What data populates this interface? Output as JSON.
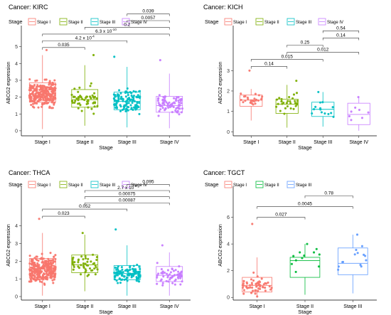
{
  "chart_data": [
    {
      "type": "box",
      "title": "Cancer: KIRC",
      "xlabel": "Stage",
      "ylabel": "ABCG2 expression",
      "legend_title": "Stage",
      "legend_position": "top",
      "categories": [
        "Stage I",
        "Stage II",
        "Stage III",
        "Stage IV"
      ],
      "ylim": [
        -0.3,
        6.0
      ],
      "yticks": [
        0,
        1,
        2,
        3,
        4,
        5
      ],
      "colors": [
        "#F8766D",
        "#7CAE00",
        "#00BFC4",
        "#C77CFF"
      ],
      "boxes": [
        {
          "category": "Stage I",
          "q1": 1.7,
          "median": 2.2,
          "q3": 2.85,
          "whisker_low": 0.1,
          "whisker_high": 4.5,
          "n_points": 260,
          "max": 4.8
        },
        {
          "category": "Stage II",
          "q1": 1.4,
          "median": 1.85,
          "q3": 2.45,
          "whisker_low": 0.3,
          "whisker_high": 3.9,
          "n_points": 55,
          "max": 4.5
        },
        {
          "category": "Stage III",
          "q1": 1.25,
          "median": 1.75,
          "q3": 2.3,
          "whisker_low": 0.2,
          "whisker_high": 3.8,
          "n_points": 120,
          "max": 4.4
        },
        {
          "category": "Stage IV",
          "q1": 1.1,
          "median": 1.5,
          "q3": 2.05,
          "whisker_low": 0.15,
          "whisker_high": 3.4,
          "n_points": 80,
          "max": 4.2
        }
      ],
      "comparisons": [
        {
          "pair": [
            "Stage I",
            "Stage II"
          ],
          "label": "0.035",
          "y": 4.95
        },
        {
          "pair": [
            "Stage I",
            "Stage III"
          ],
          "label_base": "4.2",
          "label_mid": " x 10",
          "label_exp": "-4",
          "y": 5.35
        },
        {
          "pair": [
            "Stage I",
            "Stage IV"
          ],
          "label_base": "6.3",
          "label_mid": " x 10",
          "label_exp": "-10",
          "y": 5.75
        },
        {
          "pair": [
            "Stage II",
            "Stage IV"
          ],
          "label": "0.2",
          "y": 6.15
        },
        {
          "pair": [
            "Stage III",
            "Stage IV"
          ],
          "label": "0.0057",
          "y": 6.55
        },
        {
          "pair": [
            "Stage III",
            "Stage IV"
          ],
          "label": "0.039",
          "y": 6.95
        }
      ]
    },
    {
      "type": "box",
      "title": "Cancer: KICH",
      "xlabel": "Stage",
      "ylabel": "ABCG2 expression",
      "legend_title": "Stage",
      "legend_position": "top",
      "categories": [
        "Stage I",
        "Stage II",
        "Stage III",
        "Stage IV"
      ],
      "ylim": [
        -0.2,
        5.0
      ],
      "yticks": [
        0,
        1,
        2,
        3
      ],
      "colors": [
        "#F8766D",
        "#7CAE00",
        "#00BFC4",
        "#C77CFF"
      ],
      "boxes": [
        {
          "category": "Stage I",
          "q1": 1.25,
          "median": 1.55,
          "q3": 1.8,
          "whisker_low": 0.55,
          "whisker_high": 2.1,
          "n_points": 28,
          "max": 3.0
        },
        {
          "category": "Stage II",
          "q1": 0.9,
          "median": 1.35,
          "q3": 1.6,
          "whisker_low": 0.2,
          "whisker_high": 2.3,
          "n_points": 30,
          "max": 2.5
        },
        {
          "category": "Stage III",
          "q1": 0.75,
          "median": 1.1,
          "q3": 1.45,
          "whisker_low": 0.25,
          "whisker_high": 1.95,
          "n_points": 14,
          "max": 1.95
        },
        {
          "category": "Stage IV",
          "q1": 0.35,
          "median": 0.85,
          "q3": 1.4,
          "whisker_low": 0.05,
          "whisker_high": 1.7,
          "n_points": 8,
          "max": 1.7
        }
      ],
      "comparisons": [
        {
          "pair": [
            "Stage I",
            "Stage II"
          ],
          "label": "0.14",
          "y": 3.2
        },
        {
          "pair": [
            "Stage I",
            "Stage III"
          ],
          "label": "0.015",
          "y": 3.55
        },
        {
          "pair": [
            "Stage II",
            "Stage IV"
          ],
          "label": "0.012",
          "y": 3.9
        },
        {
          "pair": [
            "Stage II",
            "Stage III"
          ],
          "label": "0.25",
          "y": 4.25
        },
        {
          "pair": [
            "Stage III",
            "Stage IV"
          ],
          "label": "0.14",
          "y": 4.6
        },
        {
          "pair": [
            "Stage III",
            "Stage IV"
          ],
          "label": "0.54",
          "y": 4.95
        }
      ]
    },
    {
      "type": "box",
      "title": "Cancer: THCA",
      "xlabel": "Stage",
      "ylabel": "ABCG2 expression",
      "legend_title": "Stage",
      "legend_position": "top",
      "categories": [
        "Stage I",
        "Stage II",
        "Stage III",
        "Stage IV"
      ],
      "ylim": [
        -0.2,
        6.0
      ],
      "yticks": [
        0,
        1,
        2,
        3,
        4
      ],
      "colors": [
        "#F8766D",
        "#7CAE00",
        "#00BFC4",
        "#C77CFF"
      ],
      "boxes": [
        {
          "category": "Stage I",
          "q1": 1.05,
          "median": 1.55,
          "q3": 2.15,
          "whisker_low": 0.05,
          "whisker_high": 3.6,
          "n_points": 280,
          "max": 4.4
        },
        {
          "category": "Stage II",
          "q1": 1.35,
          "median": 1.8,
          "q3": 2.35,
          "whisker_low": 0.3,
          "whisker_high": 3.5,
          "n_points": 50,
          "max": 3.6
        },
        {
          "category": "Stage III",
          "q1": 0.95,
          "median": 1.3,
          "q3": 1.75,
          "whisker_low": 0.05,
          "whisker_high": 2.9,
          "n_points": 110,
          "max": 3.8
        },
        {
          "category": "Stage IV",
          "q1": 0.85,
          "median": 1.2,
          "q3": 1.7,
          "whisker_low": 0.05,
          "whisker_high": 2.5,
          "n_points": 60,
          "max": 2.9
        }
      ],
      "comparisons": [
        {
          "pair": [
            "Stage I",
            "Stage II"
          ],
          "label": "0.023",
          "y": 4.55
        },
        {
          "pair": [
            "Stage I",
            "Stage III"
          ],
          "label": "0.052",
          "y": 4.95
        },
        {
          "pair": [
            "Stage II",
            "Stage IV"
          ],
          "label": "0.00087",
          "y": 5.3
        },
        {
          "pair": [
            "Stage II",
            "Stage IV"
          ],
          "label": "0.00075",
          "y": 5.65
        },
        {
          "pair": [
            "Stage II",
            "Stage IV"
          ],
          "label_base": "2.7",
          "label_mid": " x 10",
          "label_exp": "-5",
          "y": 6.0
        },
        {
          "pair": [
            "Stage III",
            "Stage IV"
          ],
          "label": "0.095",
          "y": 6.35
        }
      ]
    },
    {
      "type": "box",
      "title": "Cancer: TGCT",
      "xlabel": "Stage",
      "ylabel": "ABCG2 expression",
      "legend_title": "Stage",
      "legend_position": "top",
      "categories": [
        "Stage I",
        "Stage II",
        "Stage III"
      ],
      "ylim": [
        -0.2,
        8.0
      ],
      "yticks": [
        0,
        2,
        4,
        6
      ],
      "colors": [
        "#F8766D",
        "#00BA38",
        "#619CFF"
      ],
      "boxes": [
        {
          "category": "Stage I",
          "q1": 0.4,
          "median": 0.9,
          "q3": 1.5,
          "whisker_low": 0.0,
          "whisker_high": 3.0,
          "n_points": 60,
          "max": 5.5
        },
        {
          "category": "Stage II",
          "q1": 1.5,
          "median": 2.75,
          "q3": 3.0,
          "whisker_low": 0.2,
          "whisker_high": 4.0,
          "n_points": 12,
          "max": 4.0
        },
        {
          "category": "Stage III",
          "q1": 1.7,
          "median": 2.55,
          "q3": 3.7,
          "whisker_low": 0.3,
          "whisker_high": 4.7,
          "n_points": 14,
          "max": 4.7
        }
      ],
      "comparisons": [
        {
          "pair": [
            "Stage I",
            "Stage II"
          ],
          "label": "0.027",
          "y": 6.0
        },
        {
          "pair": [
            "Stage I",
            "Stage III"
          ],
          "label": "0.0045",
          "y": 6.8
        },
        {
          "pair": [
            "Stage II",
            "Stage III"
          ],
          "label": "0.78",
          "y": 7.6
        }
      ]
    }
  ]
}
